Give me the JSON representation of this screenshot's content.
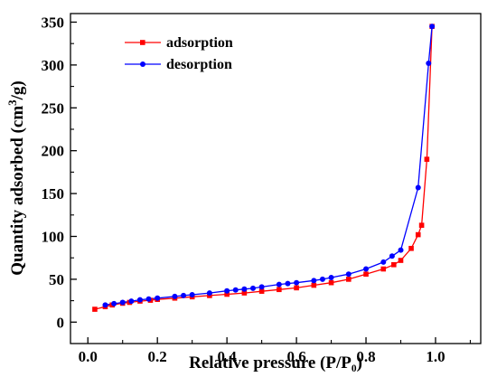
{
  "chart_data": {
    "type": "line",
    "title": "",
    "xlabel": "Relative pressure (P/P₀)",
    "ylabel_main": "Quantity adsorbed (cm",
    "ylabel_sup": "3",
    "ylabel_tail": "/g)",
    "xlim": [
      -0.05,
      1.13
    ],
    "ylim": [
      -25,
      360
    ],
    "xticks": [
      0.0,
      0.2,
      0.4,
      0.6,
      0.8,
      1.0
    ],
    "xtick_labels": [
      "0.0",
      "0.2",
      "0.4",
      "0.6",
      "0.8",
      "1.0"
    ],
    "yticks": [
      0,
      50,
      100,
      150,
      200,
      250,
      300,
      350
    ],
    "ytick_labels": [
      "0",
      "50",
      "100",
      "150",
      "200",
      "250",
      "300",
      "350"
    ],
    "legend_position": "top-left",
    "series": [
      {
        "name": "adsorption",
        "color": "#ff0000",
        "marker": "square",
        "points": [
          [
            0.02,
            15
          ],
          [
            0.05,
            18
          ],
          [
            0.07,
            20
          ],
          [
            0.1,
            22
          ],
          [
            0.12,
            23
          ],
          [
            0.15,
            24.5
          ],
          [
            0.18,
            25.5
          ],
          [
            0.2,
            26.5
          ],
          [
            0.25,
            28
          ],
          [
            0.3,
            29.5
          ],
          [
            0.35,
            31
          ],
          [
            0.4,
            32.5
          ],
          [
            0.45,
            34
          ],
          [
            0.5,
            36
          ],
          [
            0.55,
            38
          ],
          [
            0.6,
            40
          ],
          [
            0.65,
            43
          ],
          [
            0.7,
            46
          ],
          [
            0.75,
            50
          ],
          [
            0.8,
            56
          ],
          [
            0.85,
            62
          ],
          [
            0.88,
            67
          ],
          [
            0.9,
            72
          ],
          [
            0.93,
            86
          ],
          [
            0.95,
            102
          ],
          [
            0.96,
            113
          ],
          [
            0.975,
            190
          ],
          [
            0.99,
            345
          ]
        ]
      },
      {
        "name": "desorption",
        "color": "#0000ff",
        "marker": "circle",
        "points": [
          [
            0.99,
            345
          ],
          [
            0.98,
            302
          ],
          [
            0.95,
            157
          ],
          [
            0.9,
            84
          ],
          [
            0.875,
            77
          ],
          [
            0.85,
            70
          ],
          [
            0.8,
            62
          ],
          [
            0.75,
            56
          ],
          [
            0.7,
            52
          ],
          [
            0.675,
            50
          ],
          [
            0.65,
            48.5
          ],
          [
            0.6,
            46
          ],
          [
            0.575,
            45
          ],
          [
            0.55,
            44
          ],
          [
            0.5,
            41
          ],
          [
            0.475,
            39.5
          ],
          [
            0.45,
            38.5
          ],
          [
            0.425,
            37.5
          ],
          [
            0.4,
            36.5
          ],
          [
            0.35,
            34
          ],
          [
            0.3,
            32
          ],
          [
            0.275,
            31
          ],
          [
            0.25,
            30
          ],
          [
            0.2,
            28
          ],
          [
            0.175,
            27
          ],
          [
            0.15,
            26
          ],
          [
            0.125,
            24.5
          ],
          [
            0.1,
            23
          ],
          [
            0.075,
            21.5
          ],
          [
            0.05,
            20
          ]
        ]
      }
    ]
  }
}
